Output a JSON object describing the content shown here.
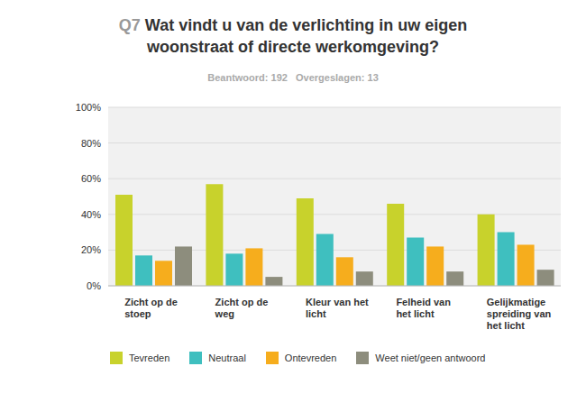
{
  "chart_data": {
    "type": "bar",
    "title": "Q7 Wat vindt u van de verlichting in uw eigen woonstraat of directe werkomgeving?",
    "subtitle": "Beantwoord: 192   Overgeslagen: 13",
    "categories": [
      "Zicht op de stoep",
      "Zicht op de weg",
      "Kleur van het licht",
      "Felheid van het licht",
      "Gelijkmatige spreiding van het licht"
    ],
    "series": [
      {
        "name": "Tevreden",
        "color": "#c8d22c",
        "values": [
          51,
          57,
          49,
          46,
          40
        ]
      },
      {
        "name": "Neutraal",
        "color": "#3fbfbf",
        "values": [
          17,
          18,
          29,
          27,
          30
        ]
      },
      {
        "name": "Ontevreden",
        "color": "#f6ad1d",
        "values": [
          14,
          21,
          16,
          22,
          23
        ]
      },
      {
        "name": "Weet niet/geen antwoord",
        "color": "#8d8d7d",
        "values": [
          22,
          5,
          8,
          8,
          9
        ]
      }
    ],
    "ylim": [
      0,
      100
    ],
    "yticks": [
      {
        "value": 0,
        "label": "0%"
      },
      {
        "value": 20,
        "label": "20%"
      },
      {
        "value": 40,
        "label": "40%"
      },
      {
        "value": 60,
        "label": "60%"
      },
      {
        "value": 80,
        "label": "80%"
      },
      {
        "value": 100,
        "label": "100%"
      }
    ],
    "grid": true,
    "legend": "bottom"
  }
}
